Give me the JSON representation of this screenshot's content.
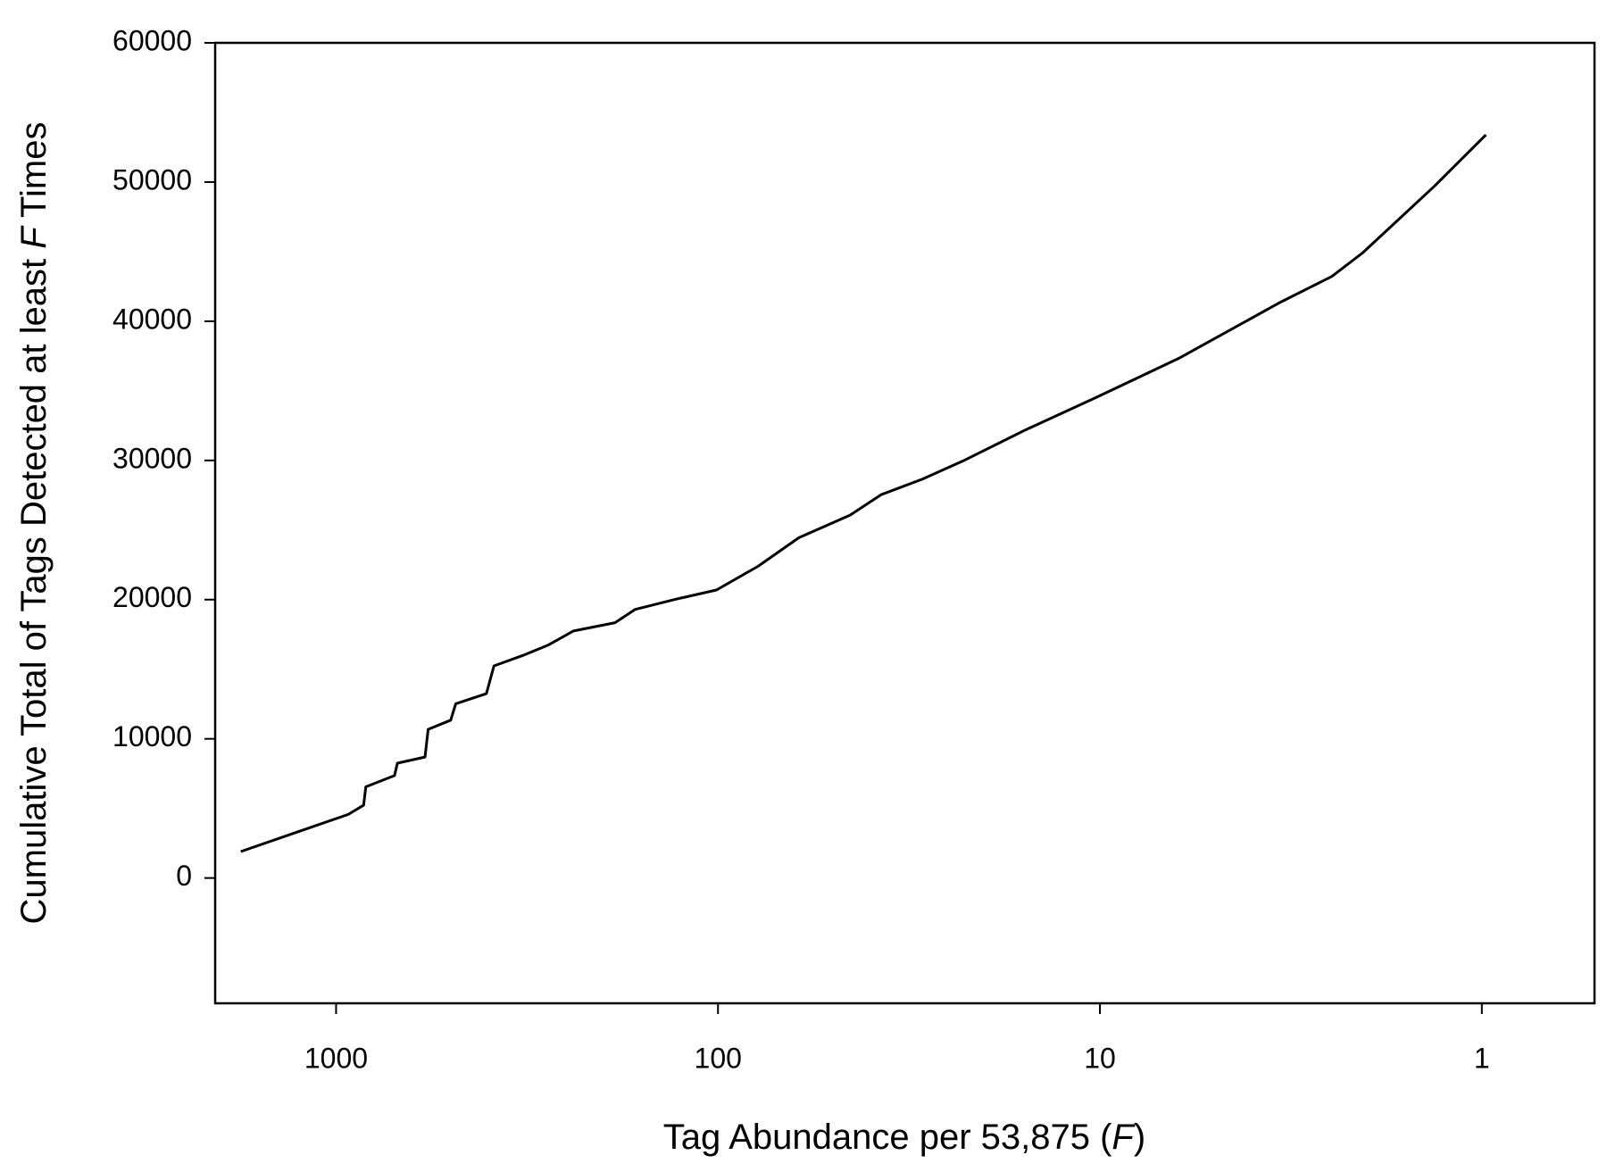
{
  "chart_data": {
    "type": "line",
    "xlabel": {
      "text": "Tag Abundance per 53,875 (",
      "italic": "F",
      "end": ")"
    },
    "ylabel": {
      "text": "Cumulative Total of Tags Detected at least ",
      "italic": "F",
      "end": " Times"
    },
    "x": [
      1776,
      1265,
      929,
      847,
      836,
      703,
      691,
      585,
      574,
      501,
      486,
      404,
      386,
      325,
      279,
      239,
      186,
      165,
      129,
      101,
      78.6,
      61.4,
      45.1,
      37.4,
      29.2,
      22.8,
      15.7,
      10.2,
      6.22,
      3.36,
      2.47,
      2.05,
      1.33,
      0.976
    ],
    "values": [
      1900,
      3300,
      4570,
      5230,
      6550,
      7360,
      8250,
      8690,
      10680,
      11340,
      12520,
      13250,
      15240,
      15980,
      16720,
      17750,
      18340,
      19290,
      20030,
      20690,
      22390,
      24450,
      26070,
      27540,
      28650,
      29970,
      32180,
      34540,
      37330,
      41380,
      43220,
      44920,
      49710,
      53390
    ],
    "color": "#000000",
    "log_x": true,
    "xlim": [
      2073,
      0.507
    ],
    "xticks": [
      1000,
      100,
      10,
      1
    ],
    "ylim": [
      -9000,
      60000
    ],
    "yticks": [
      0,
      10000,
      20000,
      30000,
      40000,
      50000,
      60000
    ],
    "grid": false
  }
}
